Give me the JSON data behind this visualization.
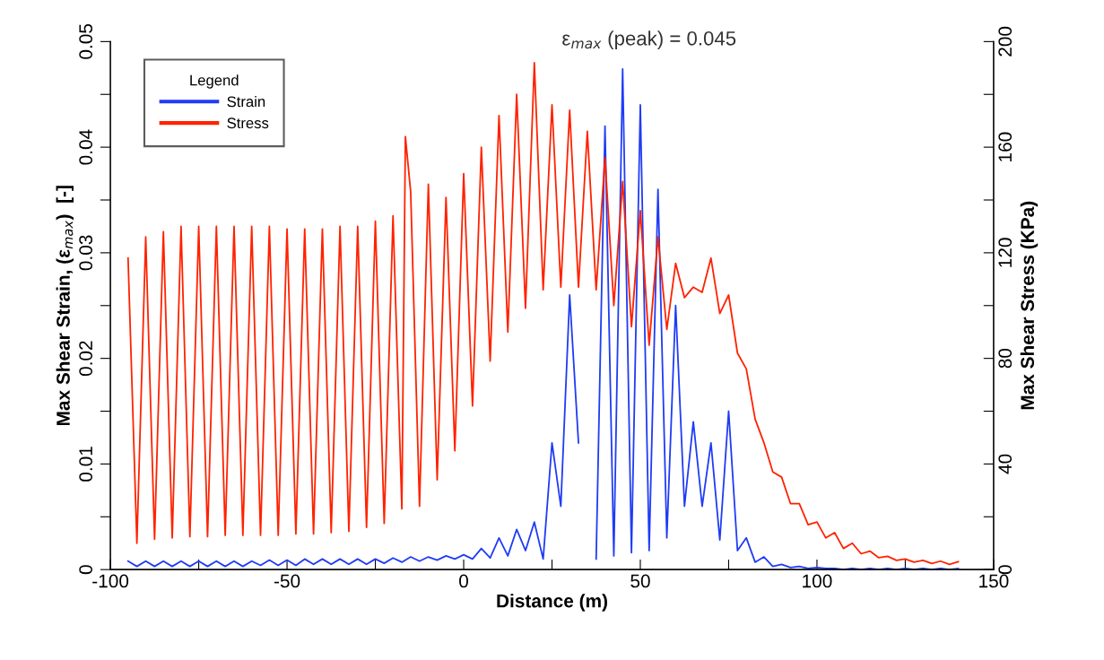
{
  "chart_data": {
    "type": "line",
    "xlabel": "Distance (m)",
    "ylabel": "Max Shear Strain, (ε$_{max}$)  [-]",
    "y2label": "Max Shear Stress (KPa)",
    "legend_title": "Legend",
    "legend": "top left",
    "grid": false,
    "marker": "none",
    "line_style": "solid",
    "annotations": [
      "ε$_{max}$ (peak) = 0.045"
    ],
    "xlim": [
      -100,
      150
    ],
    "xticks": [
      -100,
      {
        "value": -75,
        "label": null
      },
      -50,
      {
        "value": -25,
        "label": null
      },
      0,
      {
        "value": 25,
        "label": null
      },
      50,
      {
        "value": 75,
        "label": null
      },
      100,
      {
        "value": 125,
        "label": null
      },
      150
    ],
    "ylim": [
      0,
      0.05
    ],
    "yticks": [
      0,
      {
        "value": 0.005,
        "label": null
      },
      0.01,
      {
        "value": 0.015,
        "label": null
      },
      0.02,
      {
        "value": 0.025,
        "label": null
      },
      0.03,
      {
        "value": 0.035,
        "label": null
      },
      0.04,
      {
        "value": 0.045,
        "label": null
      },
      0.05
    ],
    "y2lim": [
      0,
      200
    ],
    "y2ticks": [
      0,
      {
        "value": 20,
        "label": null
      },
      40,
      {
        "value": 60,
        "label": null
      },
      80,
      {
        "value": 100,
        "label": null
      },
      120,
      {
        "value": 140,
        "label": null
      },
      160,
      {
        "value": 180,
        "label": null
      },
      200
    ],
    "series": [
      {
        "name": "Strain",
        "color": "#1f3cf5",
        "axis": "y",
        "x": [
          -95,
          -92.5,
          -90,
          -87.5,
          -85,
          -82.5,
          -80,
          -77.5,
          -75,
          -72.5,
          -70,
          -67.5,
          -65,
          -62.5,
          -60,
          -57.5,
          -55,
          -52.5,
          -50,
          -47.5,
          -45,
          -42.5,
          -40,
          -37.5,
          -35,
          -32.5,
          -30,
          -27.5,
          -25,
          -22.5,
          -20,
          -17.5,
          -15,
          -12.5,
          -10,
          -7.5,
          -5,
          -2.5,
          0,
          2.5,
          5,
          7.5,
          10,
          12.5,
          15,
          17.5,
          20,
          22.5,
          25,
          27.5,
          30,
          32.5,
          35,
          37.5,
          40,
          42.5,
          45,
          47.5,
          50,
          52.5,
          55,
          57.5,
          60,
          62.5,
          65,
          67.5,
          70,
          72.5,
          75,
          77.5,
          80,
          82.5,
          85,
          87.5,
          90,
          92.5,
          95,
          97.5,
          100,
          102.5,
          105,
          107.5,
          110,
          112.5,
          115,
          117.5,
          120,
          122.5,
          125,
          127.5,
          130,
          132.5,
          135,
          137.5,
          140
        ],
        "values": [
          0.0008,
          0.0003,
          0.0008,
          0.0003,
          0.0008,
          0.0003,
          0.0008,
          0.0003,
          0.0008,
          0.0003,
          0.0008,
          0.0003,
          0.0008,
          0.0003,
          0.0008,
          0.0004,
          0.0009,
          0.0004,
          0.0009,
          0.0004,
          0.001,
          0.0005,
          0.001,
          0.0005,
          0.001,
          0.0005,
          0.001,
          0.0005,
          0.001,
          0.0006,
          0.0011,
          0.0007,
          0.0012,
          0.0008,
          0.0012,
          0.0009,
          0.0013,
          0.001,
          0.0014,
          0.001,
          0.002,
          0.0011,
          0.003,
          0.0013,
          0.0038,
          0.0018,
          0.0045,
          0.001,
          0.012,
          0.006,
          0.026,
          0.012,
          null,
          0.001,
          0.042,
          0.0013,
          0.0474,
          0.0016,
          0.044,
          0.0018,
          0.036,
          0.003,
          0.025,
          0.006,
          0.014,
          0.006,
          0.012,
          0.0028,
          0.015,
          0.0018,
          0.003,
          0.0007,
          0.0012,
          0.0003,
          0.0005,
          0.0002,
          0.0003,
          0.0001,
          0.0002,
          0.0001,
          0.0001,
          0,
          0.0001,
          0,
          0.0001,
          0,
          0.0001,
          0,
          0.0001,
          0,
          0.0001,
          0,
          0.0001,
          0,
          0.0001
        ]
      },
      {
        "name": "Stress",
        "color": "#ff2200",
        "axis": "y2",
        "x": [
          -95,
          -92.5,
          -90,
          -87.5,
          -85,
          -82.5,
          -80,
          -77.5,
          -75,
          -72.5,
          -70,
          -67.5,
          -65,
          -62.5,
          -60,
          -57.5,
          -55,
          -52.5,
          -50,
          -47.5,
          -45,
          -42.5,
          -40,
          -37.5,
          -35,
          -32.5,
          -30,
          -27.5,
          -25,
          -22.5,
          -20,
          -17.5,
          -16.5,
          -15,
          -12.5,
          -10,
          -7.5,
          -5,
          -2.5,
          0,
          2.5,
          5,
          7.5,
          10,
          12.5,
          15,
          17.5,
          20,
          22.5,
          25,
          27.5,
          30,
          32.5,
          35,
          37.5,
          40,
          42.5,
          45,
          47.5,
          50,
          52.5,
          55,
          57.5,
          60,
          62.5,
          65,
          67.5,
          70,
          72.5,
          75,
          77.5,
          80,
          82.5,
          85,
          87.5,
          90,
          92.5,
          95,
          97.5,
          100,
          102.5,
          105,
          107.5,
          110,
          112.5,
          115,
          117.5,
          120,
          122.5,
          125,
          127.5,
          130,
          132.5,
          135,
          137.5,
          140
        ],
        "values": [
          118,
          10,
          126,
          11.5,
          128,
          12,
          130,
          12.5,
          130,
          12.5,
          130,
          13,
          130,
          13,
          130,
          13,
          130,
          13,
          129,
          13.5,
          129,
          13.5,
          129,
          14,
          130,
          14.5,
          130,
          16,
          132,
          17.5,
          134,
          23,
          164,
          143,
          24,
          146,
          34,
          141,
          45,
          150,
          62,
          160,
          79,
          172,
          90,
          180,
          99,
          192,
          106,
          176,
          107,
          174,
          107,
          166,
          106,
          156,
          100,
          147,
          92,
          136,
          85,
          126,
          91,
          116,
          103,
          107,
          105,
          118,
          97,
          104,
          82,
          76,
          57,
          48,
          37,
          35,
          25,
          25,
          17,
          18,
          12,
          14,
          8,
          10,
          6,
          7,
          4.5,
          5,
          3.5,
          4,
          2.8,
          3.5,
          2.3,
          3.2,
          2,
          3
        ]
      }
    ]
  }
}
